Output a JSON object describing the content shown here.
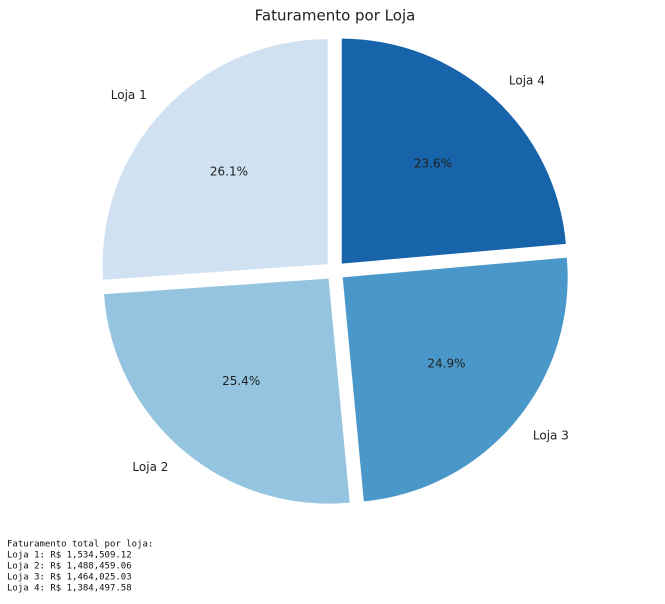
{
  "chart_data": {
    "type": "pie",
    "title": "Faturamento por Loja",
    "categories": [
      "Loja 1",
      "Loja 2",
      "Loja 3",
      "Loja 4"
    ],
    "values": [
      26.1,
      25.4,
      24.9,
      23.6
    ],
    "value_labels": [
      "26.1%",
      "25.4%",
      "24.9%",
      "23.6%"
    ],
    "colors": [
      "#d0e1f2",
      "#94c4df",
      "#4a98c9",
      "#1764ab"
    ]
  },
  "footer": {
    "title": "Faturamento total por loja:",
    "lines": [
      "Loja 1: R$ 1,534,509.12",
      "Loja 2: R$ 1,488,459.06",
      "Loja 3: R$ 1,464,025.03",
      "Loja 4: R$ 1,384,497.58"
    ]
  }
}
